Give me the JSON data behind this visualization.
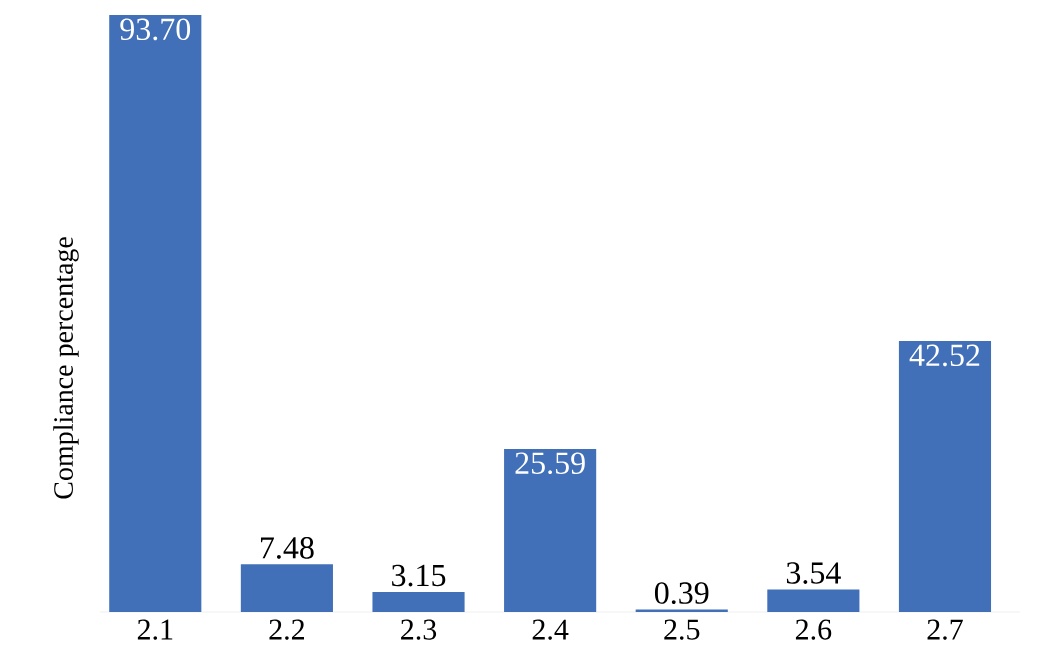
{
  "chart_data": {
    "type": "bar",
    "ylabel": "Compliance percentage",
    "categories": [
      "2.1",
      "2.2",
      "2.3",
      "2.4",
      "2.5",
      "2.6",
      "2.7"
    ],
    "values": [
      93.7,
      7.48,
      3.15,
      25.59,
      0.39,
      3.54,
      42.52
    ],
    "value_labels": [
      "93.70",
      "7.48",
      "3.15",
      "25.59",
      "0.39",
      "3.54",
      "42.52"
    ],
    "color": "#4170b8"
  }
}
